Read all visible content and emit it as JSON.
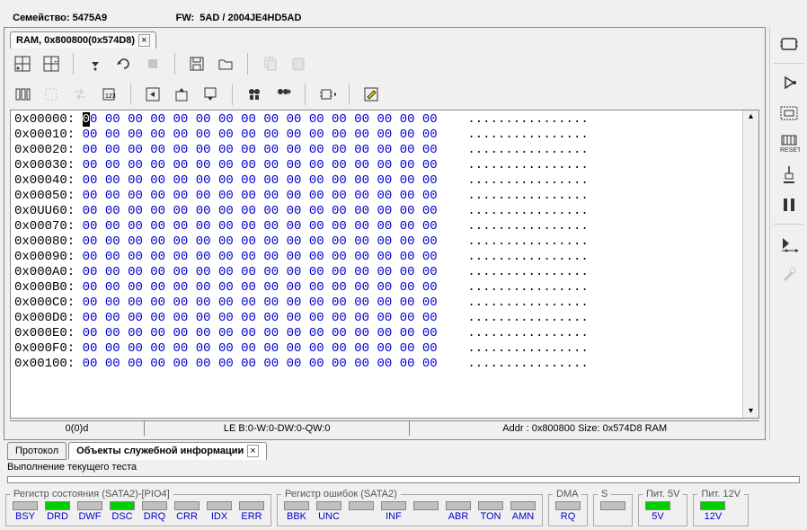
{
  "header": {
    "family_label": "Семейство:",
    "family_value": "5475A9",
    "fw_label": "FW:",
    "fw_value": "5AD / 2004JE4HD5AD"
  },
  "tab": {
    "title": "RAM, 0x800800(0x574D8)"
  },
  "status": {
    "cell1": "0(0)d",
    "cell2": "LE B:0-W:0-DW:0-QW:0",
    "cell3": "Addr : 0x800800 Size: 0x574D8 RAM"
  },
  "bottomTabs": {
    "tab1": "Протокол",
    "tab2": "Объекты служебной информации"
  },
  "testLabel": "Выполнение текущего теста",
  "hex": {
    "offsets": [
      "0x00000:",
      "0x00010:",
      "0x00020:",
      "0x00030:",
      "0x00040:",
      "0x00050:",
      "0x0UU60:",
      "0x00070:",
      "0x00080:",
      "0x00090:",
      "0x000A0:",
      "0x000B0:",
      "0x000C0:",
      "0x000D0:",
      "0x000E0:",
      "0x000F0:",
      "0x00100:"
    ],
    "bytes_per_row": 16,
    "byte": "00",
    "ascii_row": "................"
  },
  "regStatus": {
    "title": "Регистр состояния (SATA2)-[PIO4]",
    "items": [
      {
        "label": "BSY",
        "on": false
      },
      {
        "label": "DRD",
        "on": true
      },
      {
        "label": "DWF",
        "on": false
      },
      {
        "label": "DSC",
        "on": true
      },
      {
        "label": "DRQ",
        "on": false
      },
      {
        "label": "CRR",
        "on": false
      },
      {
        "label": "IDX",
        "on": false
      },
      {
        "label": "ERR",
        "on": false
      }
    ]
  },
  "regError": {
    "title": "Регистр ошибок (SATA2)",
    "items": [
      {
        "label": "BBK",
        "on": false
      },
      {
        "label": "UNC",
        "on": false
      },
      {
        "label": "",
        "on": false
      },
      {
        "label": "INF",
        "on": false
      },
      {
        "label": "",
        "on": false
      },
      {
        "label": "ABR",
        "on": false
      },
      {
        "label": "TON",
        "on": false
      },
      {
        "label": "AMN",
        "on": false
      }
    ]
  },
  "regDMA": {
    "title": "DMA",
    "items": [
      {
        "label": "RQ",
        "on": false
      }
    ]
  },
  "regS": {
    "title": "S",
    "items": [
      {
        "label": "",
        "on": false
      }
    ]
  },
  "reg5V": {
    "title": "Пит. 5V",
    "items": [
      {
        "label": "5V",
        "on": true
      }
    ]
  },
  "reg12V": {
    "title": "Пит. 12V",
    "items": [
      {
        "label": "12V",
        "on": true
      }
    ]
  }
}
